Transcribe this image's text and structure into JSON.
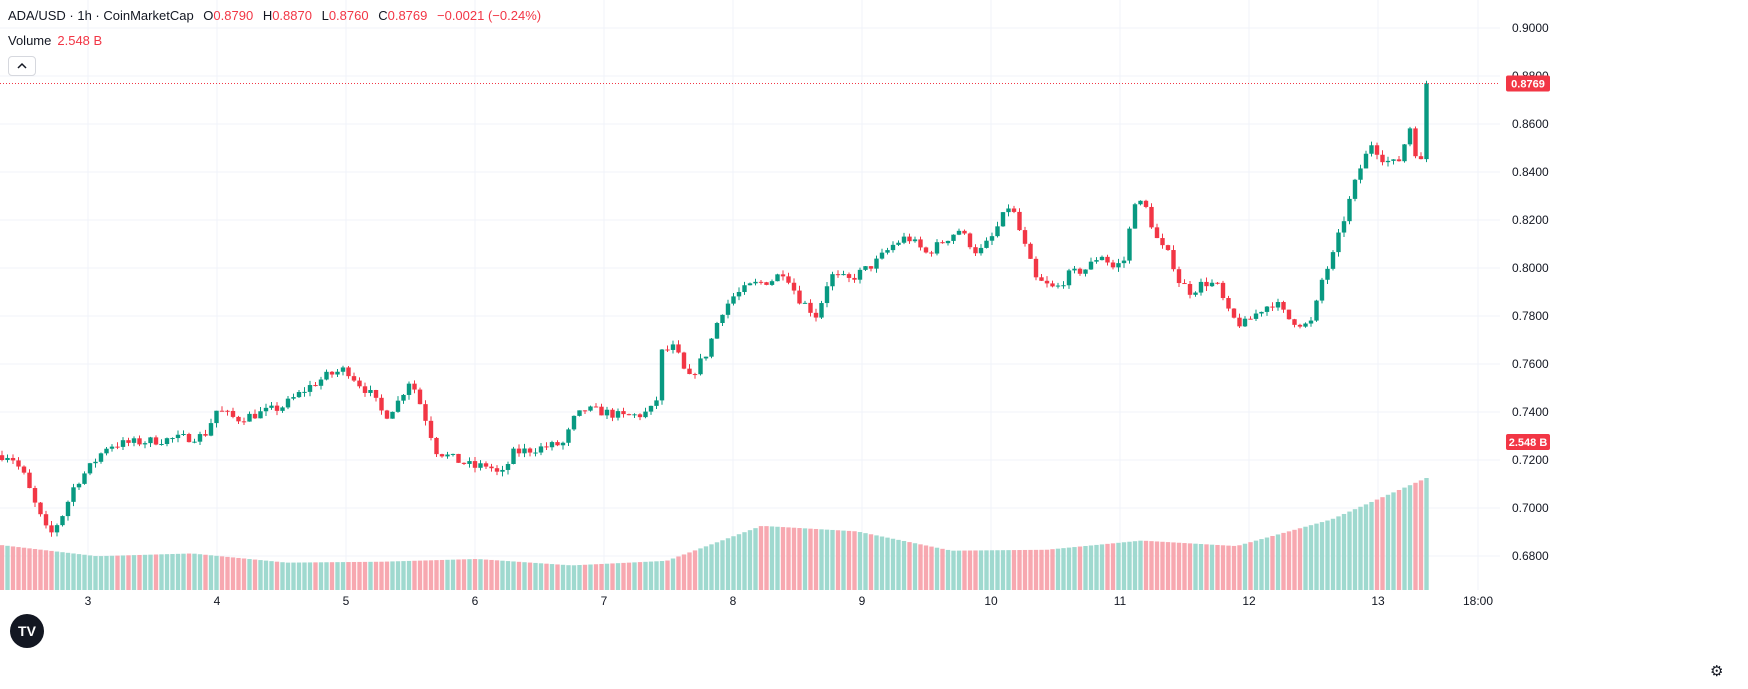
{
  "legend": {
    "symbol": "ADA/USD · 1h · CoinMarketCap",
    "o_label": "O",
    "o_value": "0.8790",
    "h_label": "H",
    "h_value": "0.8870",
    "l_label": "L",
    "l_value": "0.8760",
    "c_label": "C",
    "c_value": "0.8769",
    "change": "−0.0021 (−0.24%)",
    "volume_label": "Volume",
    "volume_value": "2.548 B"
  },
  "price_label": "0.8769",
  "volume_label_box": "2.548 B",
  "colors": {
    "up": "#089981",
    "down": "#f23645",
    "vol_up": "#9fd9cf",
    "vol_down": "#f7a8b0"
  },
  "icons": {
    "collapse": "chevron-up-icon",
    "logo": "tradingview-logo-icon",
    "settings": "gear-icon"
  },
  "chart_data": {
    "type": "candlestick",
    "title": "ADA/USD · 1h · CoinMarketCap",
    "ylim": [
      0.67,
      0.905
    ],
    "y_ticks": [
      "0.9000",
      "0.8800",
      "0.8600",
      "0.8400",
      "0.8200",
      "0.8000",
      "0.7800",
      "0.7600",
      "0.7400",
      "0.7200",
      "0.7000",
      "0.6800"
    ],
    "x_ticks": [
      "3",
      "4",
      "5",
      "6",
      "7",
      "8",
      "9",
      "10",
      "11",
      "12",
      "13",
      "18:00"
    ],
    "volume_levels": [
      0.27,
      0.15,
      0.18,
      0.08,
      0.09,
      0.12,
      0.05,
      0.1,
      0.48,
      0.42,
      0.21,
      0.22,
      0.32,
      0.26,
      0.55,
      1.0
    ],
    "close_path": [
      [
        2.4,
        0.722
      ],
      [
        2.5,
        0.714
      ],
      [
        2.6,
        0.7
      ],
      [
        2.7,
        0.688
      ],
      [
        2.8,
        0.697
      ],
      [
        2.9,
        0.71
      ],
      [
        3.0,
        0.716
      ],
      [
        3.15,
        0.726
      ],
      [
        3.3,
        0.727
      ],
      [
        3.5,
        0.728
      ],
      [
        3.7,
        0.729
      ],
      [
        3.9,
        0.73
      ],
      [
        4.0,
        0.741
      ],
      [
        4.15,
        0.737
      ],
      [
        4.3,
        0.739
      ],
      [
        4.5,
        0.742
      ],
      [
        4.7,
        0.75
      ],
      [
        4.85,
        0.755
      ],
      [
        5.0,
        0.758
      ],
      [
        5.1,
        0.752
      ],
      [
        5.2,
        0.747
      ],
      [
        5.3,
        0.738
      ],
      [
        5.4,
        0.744
      ],
      [
        5.5,
        0.754
      ],
      [
        5.6,
        0.74
      ],
      [
        5.7,
        0.724
      ],
      [
        5.85,
        0.72
      ],
      [
        6.0,
        0.717
      ],
      [
        6.1,
        0.718
      ],
      [
        6.2,
        0.713
      ],
      [
        6.3,
        0.723
      ],
      [
        6.5,
        0.725
      ],
      [
        6.7,
        0.727
      ],
      [
        6.75,
        0.736
      ],
      [
        6.85,
        0.741
      ],
      [
        7.0,
        0.74
      ],
      [
        7.15,
        0.738
      ],
      [
        7.3,
        0.739
      ],
      [
        7.4,
        0.742
      ],
      [
        7.45,
        0.765
      ],
      [
        7.55,
        0.767
      ],
      [
        7.65,
        0.753
      ],
      [
        7.8,
        0.765
      ],
      [
        7.9,
        0.781
      ],
      [
        8.0,
        0.788
      ],
      [
        8.15,
        0.793
      ],
      [
        8.3,
        0.795
      ],
      [
        8.4,
        0.799
      ],
      [
        8.5,
        0.788
      ],
      [
        8.65,
        0.78
      ],
      [
        8.75,
        0.797
      ],
      [
        8.9,
        0.795
      ],
      [
        9.1,
        0.802
      ],
      [
        9.25,
        0.81
      ],
      [
        9.35,
        0.813
      ],
      [
        9.5,
        0.806
      ],
      [
        9.6,
        0.81
      ],
      [
        9.75,
        0.816
      ],
      [
        9.9,
        0.806
      ],
      [
        10.0,
        0.812
      ],
      [
        10.15,
        0.827
      ],
      [
        10.25,
        0.811
      ],
      [
        10.35,
        0.795
      ],
      [
        10.5,
        0.791
      ],
      [
        10.6,
        0.797
      ],
      [
        10.75,
        0.8
      ],
      [
        10.85,
        0.806
      ],
      [
        10.95,
        0.8
      ],
      [
        11.05,
        0.804
      ],
      [
        11.1,
        0.829
      ],
      [
        11.2,
        0.825
      ],
      [
        11.3,
        0.81
      ],
      [
        11.4,
        0.804
      ],
      [
        11.45,
        0.795
      ],
      [
        11.55,
        0.79
      ],
      [
        11.65,
        0.794
      ],
      [
        11.75,
        0.793
      ],
      [
        11.85,
        0.78
      ],
      [
        11.95,
        0.776
      ],
      [
        12.1,
        0.783
      ],
      [
        12.2,
        0.786
      ],
      [
        12.3,
        0.779
      ],
      [
        12.45,
        0.776
      ],
      [
        12.5,
        0.778
      ],
      [
        12.55,
        0.793
      ],
      [
        12.65,
        0.805
      ],
      [
        12.75,
        0.823
      ],
      [
        12.85,
        0.84
      ],
      [
        12.95,
        0.852
      ],
      [
        13.05,
        0.845
      ],
      [
        13.15,
        0.843
      ],
      [
        13.25,
        0.859
      ],
      [
        13.32,
        0.841
      ],
      [
        13.4,
        0.86
      ],
      [
        13.5,
        0.877
      ],
      [
        13.62,
        0.879
      ],
      [
        13.7,
        0.877
      ]
    ]
  }
}
